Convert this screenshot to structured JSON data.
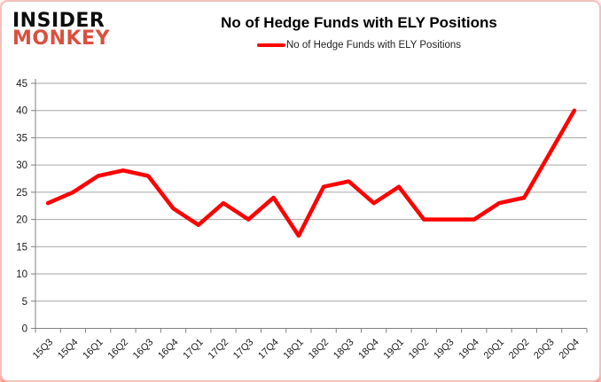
{
  "logo": {
    "line1": "INSIDER",
    "line2": "MONKEY",
    "accent_color": "#d9503f"
  },
  "title": "No of Hedge Funds with ELY Positions",
  "legend": {
    "label": "No of Hedge Funds with ELY Positions",
    "color": "#ff0000"
  },
  "chart_data": {
    "type": "line",
    "title": "No of Hedge Funds with ELY Positions",
    "categories": [
      "15Q3",
      "15Q4",
      "16Q1",
      "16Q2",
      "16Q3",
      "16Q4",
      "17Q1",
      "17Q2",
      "17Q3",
      "17Q4",
      "18Q1",
      "18Q2",
      "18Q3",
      "18Q4",
      "19Q1",
      "19Q2",
      "19Q3",
      "19Q4",
      "20Q1",
      "20Q2",
      "20Q3",
      "20Q4"
    ],
    "series": [
      {
        "name": "No of Hedge Funds with ELY Positions",
        "color": "#ff0000",
        "values": [
          23,
          25,
          28,
          29,
          28,
          22,
          19,
          23,
          20,
          24,
          17,
          26,
          27,
          23,
          26,
          20,
          20,
          20,
          23,
          24,
          32,
          40
        ]
      }
    ],
    "xlabel": "",
    "ylabel": "",
    "ylim": [
      0,
      45
    ],
    "ytick_step": 5,
    "grid": true,
    "legend_position": "top",
    "colors": {
      "axis": "#808080",
      "gridline": "#a6a6a6",
      "tick_label": "#1a1a1a"
    }
  }
}
